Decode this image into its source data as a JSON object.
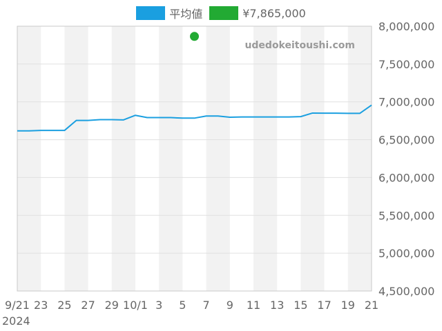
{
  "legend": {
    "average_label": "平均値",
    "price_label": "¥7,865,000"
  },
  "watermark": "udedokeitoushi.com",
  "colors": {
    "average": "#1a9fe0",
    "price": "#22aa33",
    "band": "#f2f2f2",
    "grid": "#e0e0e0",
    "axis": "#c8c8c8"
  },
  "chart_data": {
    "type": "line",
    "series": [
      {
        "name": "平均値",
        "x": [
          "2024-09-21",
          "2024-09-22",
          "2024-09-23",
          "2024-09-24",
          "2024-09-25",
          "2024-09-26",
          "2024-09-27",
          "2024-09-28",
          "2024-09-29",
          "2024-09-30",
          "2024-10-01",
          "2024-10-02",
          "2024-10-03",
          "2024-10-04",
          "2024-10-05",
          "2024-10-06",
          "2024-10-07",
          "2024-10-08",
          "2024-10-09",
          "2024-10-10",
          "2024-10-11",
          "2024-10-12",
          "2024-10-13",
          "2024-10-14",
          "2024-10-15",
          "2024-10-16",
          "2024-10-17",
          "2024-10-18",
          "2024-10-19",
          "2024-10-20",
          "2024-10-21"
        ],
        "values": [
          6617000,
          6617000,
          6622000,
          6622000,
          6622000,
          6755000,
          6755000,
          6765000,
          6765000,
          6762000,
          6822000,
          6792000,
          6792000,
          6792000,
          6785000,
          6785000,
          6813000,
          6813000,
          6797000,
          6800000,
          6800000,
          6800000,
          6800000,
          6800000,
          6805000,
          6852000,
          6850000,
          6850000,
          6848000,
          6848000,
          6957000
        ]
      },
      {
        "name": "¥7,865,000",
        "x": [
          "2024-10-06"
        ],
        "values": [
          7865000
        ]
      }
    ],
    "ylim": [
      4500000,
      8000000
    ],
    "y_ticks": [
      "4,500,000",
      "5,000,000",
      "5,500,000",
      "6,000,000",
      "6,500,000",
      "7,000,000",
      "7,500,000",
      "8,000,000"
    ],
    "x_tick_labels": [
      "9/21",
      "23",
      "25",
      "27",
      "29",
      "10/1",
      "3",
      "5",
      "7",
      "9",
      "11",
      "13",
      "15",
      "17",
      "19",
      "21"
    ],
    "x_year_label": "2024",
    "grid": true,
    "legend_position": "top-center"
  }
}
